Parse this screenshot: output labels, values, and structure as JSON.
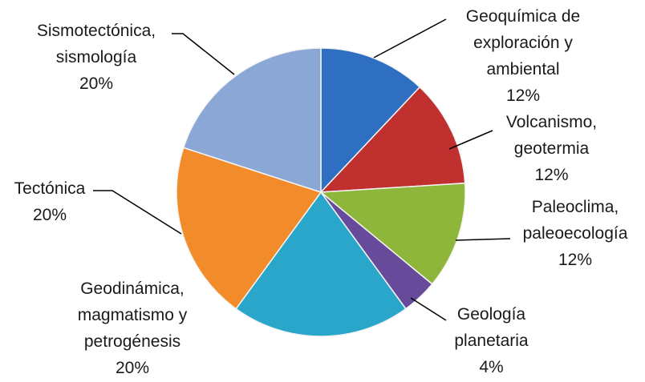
{
  "chart_data": {
    "type": "pie",
    "categories": [
      "Geoquímica de exploración y ambiental",
      "Volcanismo, geotermia",
      "Paleoclima, paleoecología",
      "Geología planetaria",
      "Geodinámica, magmatismo y petrogénesis",
      "Tectónica",
      "Sismotectónica, sismología"
    ],
    "values": [
      12,
      12,
      12,
      4,
      20,
      20,
      20
    ],
    "value_labels": [
      "12%",
      "12%",
      "12%",
      "4%",
      "20%",
      "20%",
      "20%"
    ],
    "colors": [
      "#2f6fc1",
      "#c0302e",
      "#8db63a",
      "#684a9b",
      "#2aa6cb",
      "#f28b2a",
      "#8aa7d6"
    ]
  }
}
